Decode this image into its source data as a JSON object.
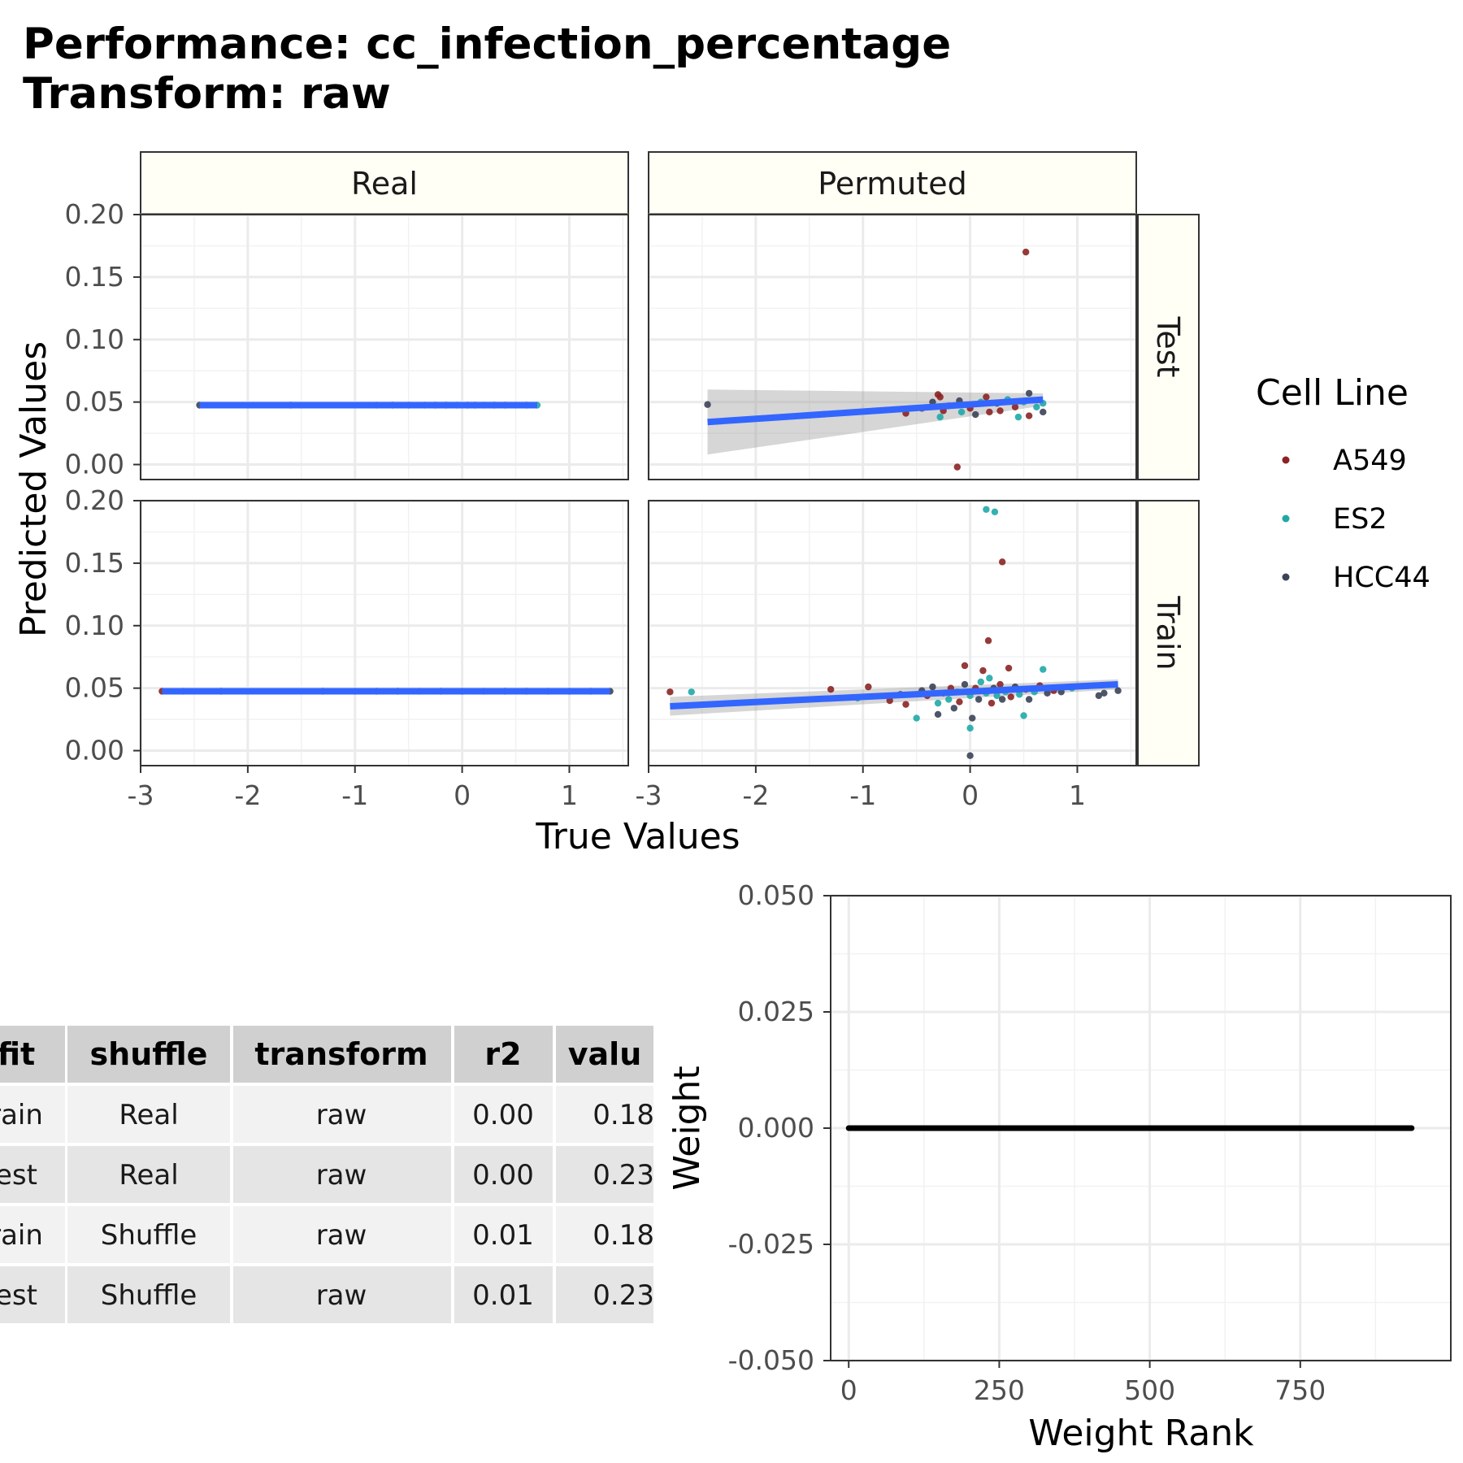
{
  "title_line1": "Performance: cc_infection_percentage",
  "title_line2": "Transform: raw",
  "chart_data": [
    {
      "type": "scatter",
      "title": "Performance: cc_infection_percentage Transform: raw",
      "xlabel": "True Values",
      "ylabel": "Predicted Values",
      "xlim": [
        -3,
        1.55
      ],
      "ylim": [
        -0.012,
        0.2
      ],
      "x_ticks": [
        "-3",
        "-2",
        "-1",
        "0",
        "1"
      ],
      "y_ticks": [
        "0.00",
        "0.05",
        "0.10",
        "0.15",
        "0.20"
      ],
      "facet_columns": [
        "Real",
        "Permuted"
      ],
      "facet_rows": [
        "Test",
        "Train"
      ],
      "grid": true,
      "legend": {
        "title": "Cell Line",
        "position": "right",
        "entries": [
          {
            "label": "A549",
            "color": "#8B2323"
          },
          {
            "label": "ES2",
            "color": "#20A8A8"
          },
          {
            "label": "HCC44",
            "color": "#3B4358"
          }
        ]
      },
      "fit_line_color": "#3366FF",
      "panels": [
        {
          "column": "Real",
          "row": "Test",
          "fit": {
            "x0": -2.45,
            "y0": 0.0475,
            "x1": 0.7,
            "y1": 0.0475,
            "ci_low0": 0.0475,
            "ci_high0": 0.0475,
            "ci_low1": 0.0475,
            "ci_high1": 0.0475
          },
          "points": [
            {
              "x": -2.45,
              "y": 0.0475,
              "g": "HCC44"
            },
            {
              "x": -1.6,
              "y": 0.0475,
              "g": "A549"
            },
            {
              "x": -0.8,
              "y": 0.0475,
              "g": "ES2"
            },
            {
              "x": -0.65,
              "y": 0.0475,
              "g": "HCC44"
            },
            {
              "x": -0.5,
              "y": 0.0475,
              "g": "A549"
            },
            {
              "x": -0.35,
              "y": 0.0475,
              "g": "ES2"
            },
            {
              "x": -0.25,
              "y": 0.0475,
              "g": "HCC44"
            },
            {
              "x": -0.15,
              "y": 0.0475,
              "g": "A549"
            },
            {
              "x": -0.05,
              "y": 0.0475,
              "g": "ES2"
            },
            {
              "x": 0.05,
              "y": 0.0475,
              "g": "HCC44"
            },
            {
              "x": 0.12,
              "y": 0.0475,
              "g": "A549"
            },
            {
              "x": 0.2,
              "y": 0.0475,
              "g": "ES2"
            },
            {
              "x": 0.3,
              "y": 0.0475,
              "g": "HCC44"
            },
            {
              "x": 0.4,
              "y": 0.0475,
              "g": "A549"
            },
            {
              "x": 0.5,
              "y": 0.0475,
              "g": "ES2"
            },
            {
              "x": 0.6,
              "y": 0.0475,
              "g": "HCC44"
            },
            {
              "x": 0.7,
              "y": 0.0475,
              "g": "ES2"
            }
          ]
        },
        {
          "column": "Permuted",
          "row": "Test",
          "fit": {
            "x0": -2.45,
            "y0": 0.034,
            "x1": 0.68,
            "y1": 0.052,
            "ci_low0": 0.008,
            "ci_high0": 0.06,
            "ci_low1": 0.047,
            "ci_high1": 0.057
          },
          "points": [
            {
              "x": -2.45,
              "y": 0.048,
              "g": "HCC44"
            },
            {
              "x": 0.52,
              "y": 0.17,
              "g": "A549"
            },
            {
              "x": -0.12,
              "y": -0.002,
              "g": "A549"
            },
            {
              "x": -0.6,
              "y": 0.041,
              "g": "A549"
            },
            {
              "x": -0.45,
              "y": 0.045,
              "g": "A549"
            },
            {
              "x": -0.35,
              "y": 0.05,
              "g": "HCC44"
            },
            {
              "x": -0.3,
              "y": 0.056,
              "g": "A549"
            },
            {
              "x": -0.28,
              "y": 0.054,
              "g": "A549"
            },
            {
              "x": -0.25,
              "y": 0.043,
              "g": "A549"
            },
            {
              "x": -0.28,
              "y": 0.038,
              "g": "ES2"
            },
            {
              "x": -0.2,
              "y": 0.047,
              "g": "HCC44"
            },
            {
              "x": -0.1,
              "y": 0.051,
              "g": "HCC44"
            },
            {
              "x": -0.08,
              "y": 0.042,
              "g": "ES2"
            },
            {
              "x": 0.0,
              "y": 0.045,
              "g": "A549"
            },
            {
              "x": 0.05,
              "y": 0.04,
              "g": "HCC44"
            },
            {
              "x": 0.1,
              "y": 0.05,
              "g": "ES2"
            },
            {
              "x": 0.15,
              "y": 0.054,
              "g": "A549"
            },
            {
              "x": 0.18,
              "y": 0.042,
              "g": "A549"
            },
            {
              "x": 0.25,
              "y": 0.049,
              "g": "HCC44"
            },
            {
              "x": 0.28,
              "y": 0.043,
              "g": "A549"
            },
            {
              "x": 0.35,
              "y": 0.052,
              "g": "ES2"
            },
            {
              "x": 0.42,
              "y": 0.046,
              "g": "A549"
            },
            {
              "x": 0.45,
              "y": 0.038,
              "g": "ES2"
            },
            {
              "x": 0.5,
              "y": 0.05,
              "g": "ES2"
            },
            {
              "x": 0.55,
              "y": 0.057,
              "g": "HCC44"
            },
            {
              "x": 0.55,
              "y": 0.039,
              "g": "A549"
            },
            {
              "x": 0.62,
              "y": 0.046,
              "g": "ES2"
            },
            {
              "x": 0.68,
              "y": 0.049,
              "g": "ES2"
            },
            {
              "x": 0.68,
              "y": 0.042,
              "g": "HCC44"
            }
          ]
        },
        {
          "column": "Real",
          "row": "Train",
          "fit": {
            "x0": -2.8,
            "y0": 0.0475,
            "x1": 1.38,
            "y1": 0.0475,
            "ci_low0": 0.0475,
            "ci_high0": 0.0475,
            "ci_low1": 0.0475,
            "ci_high1": 0.0475
          },
          "points": [
            {
              "x": -2.8,
              "y": 0.0475,
              "g": "A549"
            },
            {
              "x": -2.6,
              "y": 0.0475,
              "g": "ES2"
            },
            {
              "x": -2.25,
              "y": 0.0475,
              "g": "HCC44"
            },
            {
              "x": -1.3,
              "y": 0.0475,
              "g": "A549"
            },
            {
              "x": -1.0,
              "y": 0.0475,
              "g": "ES2"
            },
            {
              "x": -0.8,
              "y": 0.0475,
              "g": "HCC44"
            },
            {
              "x": -0.6,
              "y": 0.0475,
              "g": "A549"
            },
            {
              "x": -0.4,
              "y": 0.0475,
              "g": "ES2"
            },
            {
              "x": -0.2,
              "y": 0.0475,
              "g": "HCC44"
            },
            {
              "x": 0.0,
              "y": 0.0475,
              "g": "A549"
            },
            {
              "x": 0.2,
              "y": 0.0475,
              "g": "ES2"
            },
            {
              "x": 0.4,
              "y": 0.0475,
              "g": "HCC44"
            },
            {
              "x": 0.6,
              "y": 0.0475,
              "g": "A549"
            },
            {
              "x": 0.8,
              "y": 0.0475,
              "g": "ES2"
            },
            {
              "x": 1.0,
              "y": 0.0475,
              "g": "HCC44"
            },
            {
              "x": 1.2,
              "y": 0.0475,
              "g": "HCC44"
            },
            {
              "x": 1.38,
              "y": 0.0475,
              "g": "HCC44"
            }
          ]
        },
        {
          "column": "Permuted",
          "row": "Train",
          "fit": {
            "x0": -2.8,
            "y0": 0.0355,
            "x1": 1.38,
            "y1": 0.053,
            "ci_low0": 0.028,
            "ci_high0": 0.043,
            "ci_low1": 0.049,
            "ci_high1": 0.057
          },
          "points": [
            {
              "x": 0.15,
              "y": 0.193,
              "g": "ES2"
            },
            {
              "x": 0.23,
              "y": 0.191,
              "g": "ES2"
            },
            {
              "x": 0.3,
              "y": 0.151,
              "g": "A549"
            },
            {
              "x": 0.17,
              "y": 0.088,
              "g": "A549"
            },
            {
              "x": 0.0,
              "y": -0.004,
              "g": "HCC44"
            },
            {
              "x": -2.8,
              "y": 0.047,
              "g": "A549"
            },
            {
              "x": -2.6,
              "y": 0.047,
              "g": "ES2"
            },
            {
              "x": -1.3,
              "y": 0.049,
              "g": "A549"
            },
            {
              "x": -1.05,
              "y": 0.042,
              "g": "ES2"
            },
            {
              "x": -0.95,
              "y": 0.051,
              "g": "A549"
            },
            {
              "x": -0.75,
              "y": 0.04,
              "g": "A549"
            },
            {
              "x": -0.65,
              "y": 0.045,
              "g": "HCC44"
            },
            {
              "x": -0.6,
              "y": 0.037,
              "g": "A549"
            },
            {
              "x": -0.5,
              "y": 0.026,
              "g": "ES2"
            },
            {
              "x": -0.45,
              "y": 0.048,
              "g": "HCC44"
            },
            {
              "x": -0.4,
              "y": 0.044,
              "g": "A549"
            },
            {
              "x": -0.35,
              "y": 0.051,
              "g": "HCC44"
            },
            {
              "x": -0.3,
              "y": 0.038,
              "g": "ES2"
            },
            {
              "x": -0.3,
              "y": 0.029,
              "g": "HCC44"
            },
            {
              "x": -0.25,
              "y": 0.046,
              "g": "A549"
            },
            {
              "x": -0.2,
              "y": 0.041,
              "g": "ES2"
            },
            {
              "x": -0.18,
              "y": 0.05,
              "g": "A549"
            },
            {
              "x": -0.15,
              "y": 0.034,
              "g": "HCC44"
            },
            {
              "x": -0.12,
              "y": 0.047,
              "g": "ES2"
            },
            {
              "x": -0.1,
              "y": 0.039,
              "g": "A549"
            },
            {
              "x": -0.05,
              "y": 0.053,
              "g": "HCC44"
            },
            {
              "x": -0.05,
              "y": 0.068,
              "g": "A549"
            },
            {
              "x": 0.0,
              "y": 0.044,
              "g": "ES2"
            },
            {
              "x": 0.0,
              "y": 0.018,
              "g": "ES2"
            },
            {
              "x": 0.02,
              "y": 0.026,
              "g": "HCC44"
            },
            {
              "x": 0.05,
              "y": 0.05,
              "g": "A549"
            },
            {
              "x": 0.08,
              "y": 0.041,
              "g": "HCC44"
            },
            {
              "x": 0.1,
              "y": 0.055,
              "g": "ES2"
            },
            {
              "x": 0.12,
              "y": 0.064,
              "g": "A549"
            },
            {
              "x": 0.15,
              "y": 0.046,
              "g": "ES2"
            },
            {
              "x": 0.18,
              "y": 0.058,
              "g": "ES2"
            },
            {
              "x": 0.2,
              "y": 0.038,
              "g": "A549"
            },
            {
              "x": 0.22,
              "y": 0.05,
              "g": "HCC44"
            },
            {
              "x": 0.25,
              "y": 0.044,
              "g": "ES2"
            },
            {
              "x": 0.28,
              "y": 0.053,
              "g": "A549"
            },
            {
              "x": 0.3,
              "y": 0.041,
              "g": "HCC44"
            },
            {
              "x": 0.33,
              "y": 0.047,
              "g": "ES2"
            },
            {
              "x": 0.36,
              "y": 0.066,
              "g": "A549"
            },
            {
              "x": 0.38,
              "y": 0.043,
              "g": "A549"
            },
            {
              "x": 0.42,
              "y": 0.051,
              "g": "HCC44"
            },
            {
              "x": 0.46,
              "y": 0.045,
              "g": "ES2"
            },
            {
              "x": 0.5,
              "y": 0.028,
              "g": "ES2"
            },
            {
              "x": 0.52,
              "y": 0.049,
              "g": "A549"
            },
            {
              "x": 0.55,
              "y": 0.041,
              "g": "HCC44"
            },
            {
              "x": 0.6,
              "y": 0.047,
              "g": "ES2"
            },
            {
              "x": 0.65,
              "y": 0.052,
              "g": "A549"
            },
            {
              "x": 0.68,
              "y": 0.065,
              "g": "ES2"
            },
            {
              "x": 0.72,
              "y": 0.046,
              "g": "HCC44"
            },
            {
              "x": 0.78,
              "y": 0.048,
              "g": "A549"
            },
            {
              "x": 0.85,
              "y": 0.047,
              "g": "HCC44"
            },
            {
              "x": 0.95,
              "y": 0.05,
              "g": "ES2"
            },
            {
              "x": 1.2,
              "y": 0.044,
              "g": "HCC44"
            },
            {
              "x": 1.25,
              "y": 0.046,
              "g": "HCC44"
            },
            {
              "x": 1.38,
              "y": 0.048,
              "g": "HCC44"
            }
          ]
        }
      ]
    },
    {
      "type": "table",
      "columns": [
        "fit",
        "shuffle",
        "transform",
        "r2",
        "value"
      ],
      "visible_columns": [
        "fit",
        "shuffle",
        "transform",
        "r2",
        "valu"
      ],
      "rows": [
        [
          "rain",
          "Real",
          "raw",
          "0.00",
          "0.18"
        ],
        [
          "est",
          "Real",
          "raw",
          "0.00",
          "0.23"
        ],
        [
          "rain",
          "Shuffle",
          "raw",
          "0.01",
          "0.18"
        ],
        [
          "est",
          "Shuffle",
          "raw",
          "0.01",
          "0.23"
        ]
      ]
    },
    {
      "type": "line",
      "xlabel": "Weight Rank",
      "ylabel": "Weight",
      "xlim": [
        -30,
        1000
      ],
      "ylim": [
        -0.05,
        0.05
      ],
      "x_ticks": [
        "0",
        "250",
        "500",
        "750"
      ],
      "y_ticks": [
        "0.050",
        "0.025",
        "0.000",
        "-0.025",
        "-0.050"
      ],
      "grid": true,
      "series": [
        {
          "x": [
            0,
            935
          ],
          "values": [
            0.0,
            0.0
          ],
          "color": "#000000"
        }
      ]
    }
  ]
}
